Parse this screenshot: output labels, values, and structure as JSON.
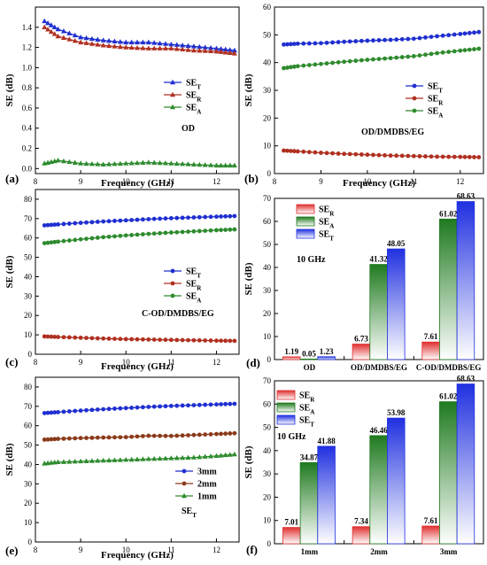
{
  "chart_data": [
    {
      "id": "a",
      "type": "line",
      "panel_label": "(a)",
      "xlabel": "Frequency (GHz)",
      "ylabel": "SE (dB)",
      "xlim": [
        8.0,
        12.5
      ],
      "ylim": [
        -0.05,
        1.6
      ],
      "xticks": [
        8,
        9,
        10,
        11,
        12
      ],
      "yticks": [
        0.0,
        0.2,
        0.4,
        0.6,
        0.8,
        1.0,
        1.2,
        1.4
      ],
      "annotation": "OD",
      "legend": {
        "position": "center-right"
      },
      "series": [
        {
          "name": "SE",
          "sub": "T",
          "color": "#1f2fd0",
          "marker": "triangle",
          "x": [
            8.2,
            8.5,
            9.0,
            9.5,
            10.0,
            10.5,
            11.0,
            11.5,
            12.0,
            12.4
          ],
          "y": [
            1.46,
            1.38,
            1.3,
            1.27,
            1.25,
            1.25,
            1.23,
            1.21,
            1.19,
            1.17
          ]
        },
        {
          "name": "SE",
          "sub": "R",
          "color": "#b03020",
          "marker": "triangle",
          "x": [
            8.2,
            8.5,
            9.0,
            9.5,
            10.0,
            10.5,
            11.0,
            11.5,
            12.0,
            12.4
          ],
          "y": [
            1.4,
            1.31,
            1.25,
            1.22,
            1.2,
            1.19,
            1.19,
            1.17,
            1.16,
            1.14
          ]
        },
        {
          "name": "SE",
          "sub": "A",
          "color": "#2e8b2e",
          "marker": "triangle",
          "x": [
            8.2,
            8.5,
            9.0,
            9.5,
            10.0,
            10.5,
            11.0,
            11.5,
            12.0,
            12.4
          ],
          "y": [
            0.05,
            0.08,
            0.05,
            0.04,
            0.05,
            0.06,
            0.05,
            0.04,
            0.03,
            0.03
          ]
        }
      ]
    },
    {
      "id": "b",
      "type": "line",
      "panel_label": "(b)",
      "xlabel": "Frequency (GHz)",
      "ylabel": "SE (dB)",
      "xlim": [
        8.0,
        12.5
      ],
      "ylim": [
        0,
        60
      ],
      "xticks": [
        8,
        9,
        10,
        11,
        12
      ],
      "yticks": [
        0,
        10,
        20,
        30,
        40,
        50,
        60
      ],
      "annotation": "OD/DMDBS/EG",
      "legend": {
        "position": "center-right"
      },
      "series": [
        {
          "name": "SE",
          "sub": "T",
          "color": "#1f2fd0",
          "marker": "circle",
          "x": [
            8.2,
            8.5,
            9.0,
            9.5,
            10.0,
            10.5,
            11.0,
            11.5,
            12.0,
            12.4
          ],
          "y": [
            46.5,
            46.8,
            47.0,
            47.5,
            47.9,
            48.2,
            48.6,
            49.5,
            50.3,
            51.0
          ]
        },
        {
          "name": "SE",
          "sub": "R",
          "color": "#b03020",
          "marker": "circle",
          "x": [
            8.2,
            8.5,
            9.0,
            9.5,
            10.0,
            10.5,
            11.0,
            11.5,
            12.0,
            12.4
          ],
          "y": [
            8.3,
            8.0,
            7.5,
            7.1,
            6.8,
            6.5,
            6.3,
            6.1,
            6.0,
            5.9
          ]
        },
        {
          "name": "SE",
          "sub": "A",
          "color": "#2e8b2e",
          "marker": "circle",
          "x": [
            8.2,
            8.5,
            9.0,
            9.5,
            10.0,
            10.5,
            11.0,
            11.5,
            12.0,
            12.4
          ],
          "y": [
            38.0,
            38.7,
            39.5,
            40.3,
            41.0,
            41.6,
            42.3,
            43.4,
            44.3,
            45.0
          ]
        }
      ]
    },
    {
      "id": "c",
      "type": "line",
      "panel_label": "(c)",
      "xlabel": "Frequency (GHz)",
      "ylabel": "SE (dB)",
      "xlim": [
        8.0,
        12.5
      ],
      "ylim": [
        0,
        85
      ],
      "xticks": [
        8,
        9,
        10,
        11,
        12
      ],
      "yticks": [
        0,
        10,
        20,
        30,
        40,
        50,
        60,
        70,
        80
      ],
      "annotation": "C-OD/DMDBS/EG",
      "legend": {
        "position": "center-right"
      },
      "series": [
        {
          "name": "SE",
          "sub": "T",
          "color": "#1f2fd0",
          "marker": "circle",
          "x": [
            8.2,
            8.5,
            9.0,
            9.5,
            10.0,
            10.5,
            11.0,
            11.5,
            12.0,
            12.4
          ],
          "y": [
            66.5,
            67.0,
            67.8,
            68.5,
            69.1,
            69.7,
            70.2,
            70.6,
            71.0,
            71.3
          ]
        },
        {
          "name": "SE",
          "sub": "R",
          "color": "#b03020",
          "marker": "circle",
          "x": [
            8.2,
            8.5,
            9.0,
            9.5,
            10.0,
            10.5,
            11.0,
            11.5,
            12.0,
            12.4
          ],
          "y": [
            9.2,
            8.9,
            8.5,
            8.1,
            7.8,
            7.6,
            7.4,
            7.2,
            7.0,
            6.9
          ]
        },
        {
          "name": "SE",
          "sub": "A",
          "color": "#2e8b2e",
          "marker": "circle",
          "x": [
            8.2,
            8.5,
            9.0,
            9.5,
            10.0,
            10.5,
            11.0,
            11.5,
            12.0,
            12.4
          ],
          "y": [
            57.3,
            58.1,
            59.3,
            60.4,
            61.3,
            62.1,
            62.8,
            63.4,
            64.0,
            64.4
          ]
        }
      ]
    },
    {
      "id": "d",
      "type": "bar",
      "panel_label": "(d)",
      "xlabel": "",
      "ylabel": "SE (dB)",
      "ylim": [
        0,
        70
      ],
      "yticks": [
        0,
        10,
        20,
        30,
        40,
        50,
        60,
        70
      ],
      "annotation": "10 GHz",
      "legend": {
        "position": "top-left"
      },
      "categories": [
        "OD",
        "OD/DMDBS/EG",
        "C-OD/DMDBS/EG"
      ],
      "series": [
        {
          "name": "SE",
          "sub": "R",
          "color": "#e03030",
          "values": [
            1.19,
            6.73,
            7.61
          ],
          "labels": [
            "1.19",
            "6.73",
            "7.61"
          ]
        },
        {
          "name": "SE",
          "sub": "A",
          "color": "#1f7a1f",
          "values": [
            0.05,
            41.32,
            61.02
          ],
          "labels": [
            "0.05",
            "41.32",
            "61.02"
          ]
        },
        {
          "name": "SE",
          "sub": "T",
          "color": "#2030e0",
          "values": [
            1.23,
            48.05,
            68.63
          ],
          "labels": [
            "1.23",
            "48.05",
            "68.63"
          ]
        }
      ]
    },
    {
      "id": "e",
      "type": "line",
      "panel_label": "(e)",
      "xlabel": "Frequency (GHz)",
      "ylabel": "SE (dB)",
      "xlim": [
        8.0,
        12.5
      ],
      "ylim": [
        0,
        85
      ],
      "xticks": [
        8,
        9,
        10,
        11,
        12
      ],
      "yticks": [
        0,
        10,
        20,
        30,
        40,
        50,
        60,
        70,
        80
      ],
      "annotation": "SE",
      "annotation_sub": "T",
      "legend": {
        "position": "center-right"
      },
      "series": [
        {
          "name": "3mm",
          "color": "#1f2fd0",
          "marker": "circle",
          "x": [
            8.2,
            8.5,
            9.0,
            9.5,
            10.0,
            10.5,
            11.0,
            11.5,
            12.0,
            12.4
          ],
          "y": [
            66.5,
            67.0,
            67.8,
            68.5,
            69.1,
            69.7,
            70.2,
            70.6,
            71.0,
            71.3
          ]
        },
        {
          "name": "2mm",
          "color": "#8b3a1a",
          "marker": "circle",
          "x": [
            8.2,
            8.5,
            9.0,
            9.5,
            10.0,
            10.5,
            11.0,
            11.5,
            12.0,
            12.4
          ],
          "y": [
            52.8,
            53.2,
            53.6,
            53.9,
            54.1,
            54.8,
            54.7,
            55.2,
            55.7,
            56.1
          ]
        },
        {
          "name": "1mm",
          "color": "#2e8b2e",
          "marker": "triangle",
          "x": [
            8.2,
            8.5,
            9.0,
            9.5,
            10.0,
            10.5,
            11.0,
            11.5,
            12.0,
            12.4
          ],
          "y": [
            40.5,
            41.2,
            41.6,
            42.0,
            42.4,
            42.8,
            43.2,
            43.6,
            44.4,
            45.2
          ]
        }
      ]
    },
    {
      "id": "f",
      "type": "bar",
      "panel_label": "(f)",
      "xlabel": "",
      "ylabel": "SE (dB)",
      "ylim": [
        0,
        70
      ],
      "yticks": [
        0,
        10,
        20,
        30,
        40,
        50,
        60,
        70
      ],
      "annotation": "10 GHz",
      "legend": {
        "position": "top-left"
      },
      "categories": [
        "1mm",
        "2mm",
        "3mm"
      ],
      "series": [
        {
          "name": "SE",
          "sub": "R",
          "color": "#e03030",
          "values": [
            7.01,
            7.34,
            7.61
          ],
          "labels": [
            "7.01",
            "7.34",
            "7.61"
          ]
        },
        {
          "name": "SE",
          "sub": "A",
          "color": "#1f7a1f",
          "values": [
            34.87,
            46.46,
            61.02
          ],
          "labels": [
            "34.87",
            "46.46",
            "61.02"
          ]
        },
        {
          "name": "SE",
          "sub": "T",
          "color": "#2030e0",
          "values": [
            41.88,
            53.98,
            68.63
          ],
          "labels": [
            "41.88",
            "53.98",
            "68.63"
          ]
        }
      ]
    }
  ]
}
